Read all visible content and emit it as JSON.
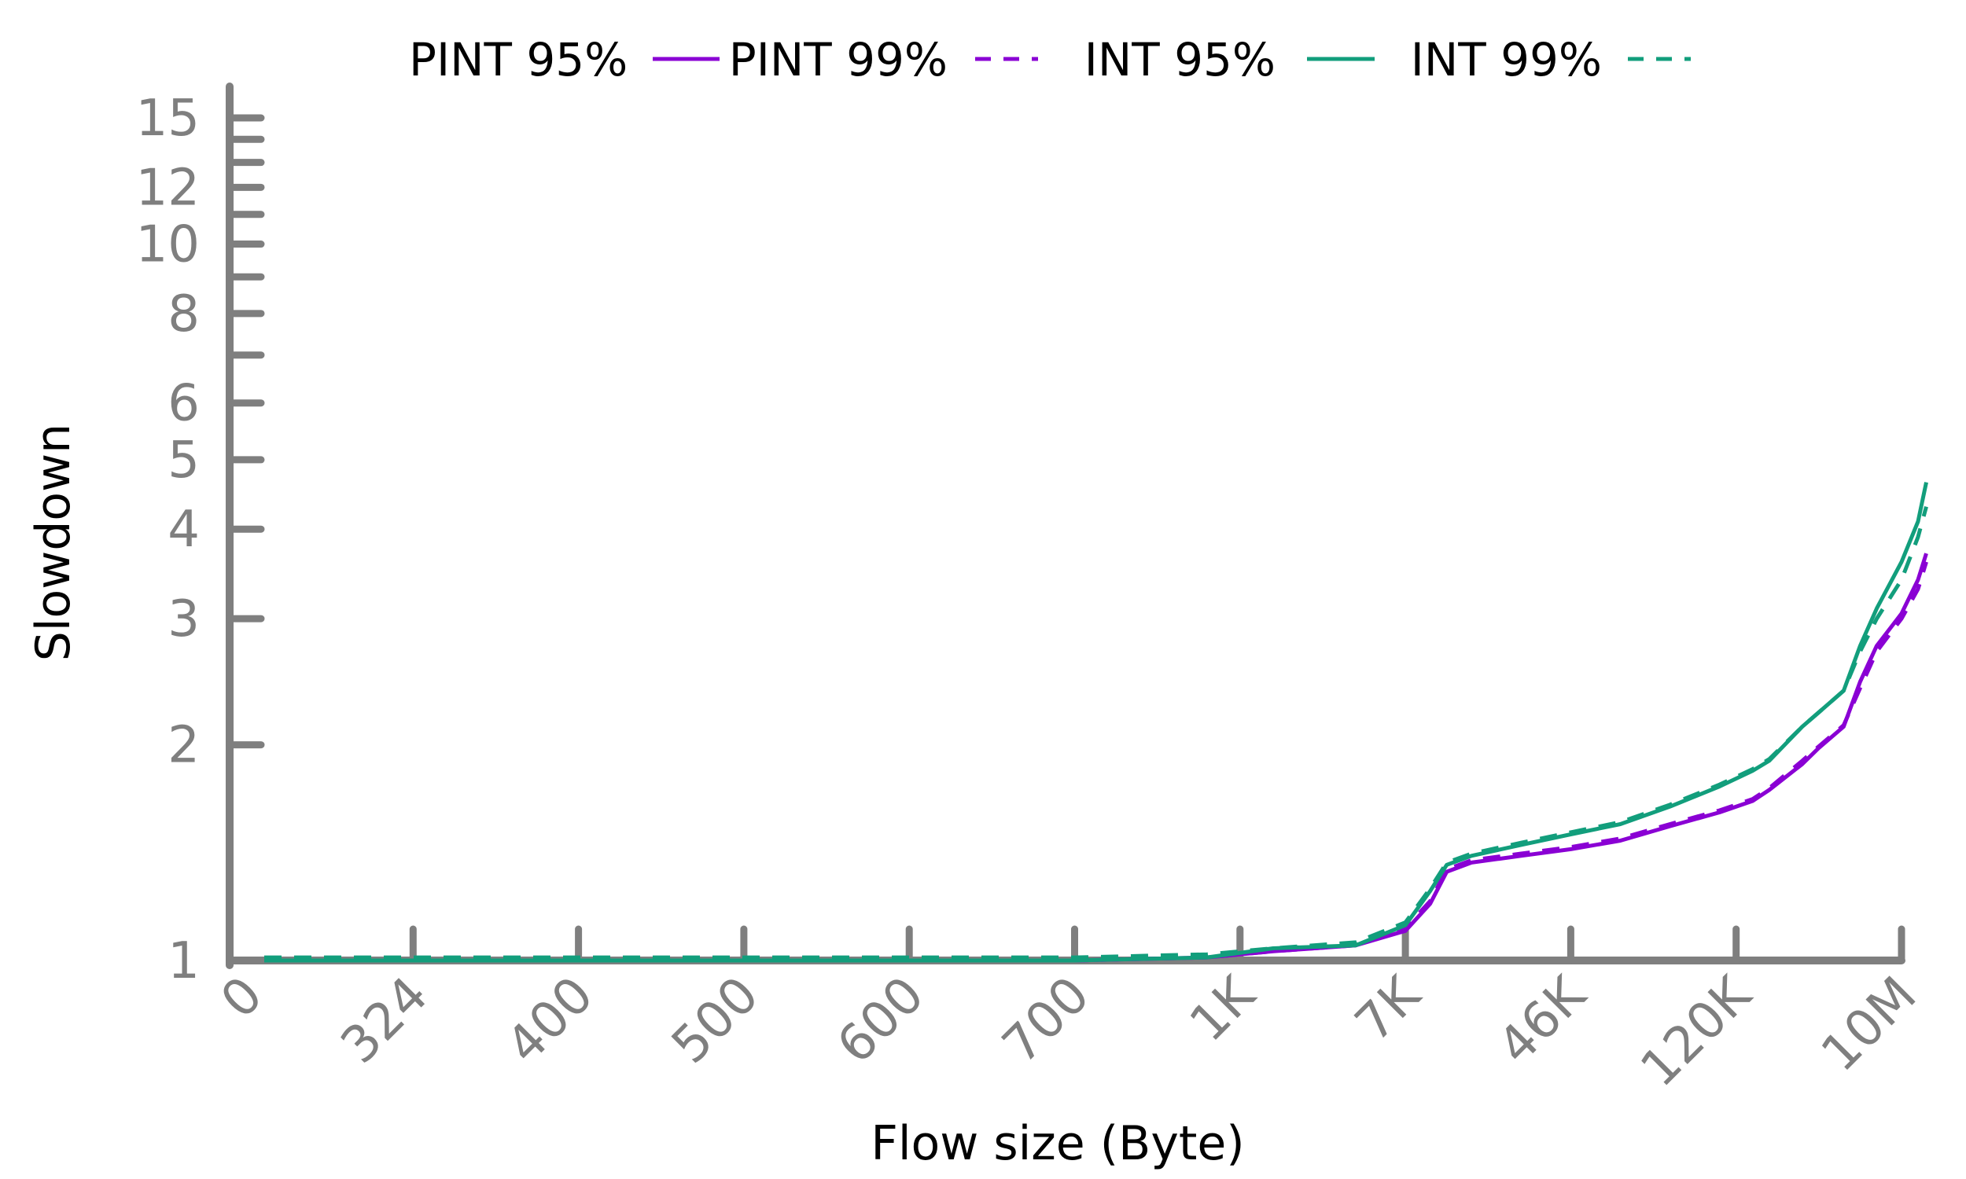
{
  "chart_data": {
    "type": "line",
    "xlabel": "Flow size (Byte)",
    "ylabel": "Slowdown",
    "x_categories": [
      "0",
      "324",
      "400",
      "500",
      "600",
      "700",
      "1K",
      "7K",
      "46K",
      "120K",
      "10M"
    ],
    "y_scale": "log",
    "y_ticks": [
      1,
      2,
      3,
      4,
      5,
      6,
      7,
      8,
      9,
      10,
      11,
      12,
      13,
      14,
      15
    ],
    "y_tick_labels": [
      {
        "value": 1,
        "label": "1"
      },
      {
        "value": 2,
        "label": "2"
      },
      {
        "value": 3,
        "label": "3"
      },
      {
        "value": 4,
        "label": "4"
      },
      {
        "value": 5,
        "label": "5"
      },
      {
        "value": 6,
        "label": "6"
      },
      {
        "value": 8,
        "label": "8"
      },
      {
        "value": 10,
        "label": "10"
      },
      {
        "value": 12,
        "label": "12"
      },
      {
        "value": 15,
        "label": "15"
      }
    ],
    "ylim": [
      1,
      17
    ],
    "grid": false,
    "legend_position": "top",
    "series": [
      {
        "name": "PINT 95%",
        "color": "#8a00d4",
        "dash": "solid",
        "points": [
          [
            0.1,
            1.0
          ],
          [
            1,
            1.0
          ],
          [
            2,
            1.0
          ],
          [
            3,
            1.0
          ],
          [
            4,
            1.0
          ],
          [
            5,
            1.0
          ],
          [
            5.8,
            1.01
          ],
          [
            6.2,
            1.03
          ],
          [
            6.7,
            1.05
          ],
          [
            7.0,
            1.1
          ],
          [
            7.15,
            1.2
          ],
          [
            7.25,
            1.33
          ],
          [
            7.4,
            1.37
          ],
          [
            7.7,
            1.4
          ],
          [
            8.0,
            1.43
          ],
          [
            8.3,
            1.47
          ],
          [
            8.6,
            1.54
          ],
          [
            8.9,
            1.61
          ],
          [
            9.1,
            1.67
          ],
          [
            9.2,
            1.73
          ],
          [
            9.4,
            1.88
          ],
          [
            9.5,
            1.98
          ],
          [
            9.65,
            2.12
          ],
          [
            9.75,
            2.45
          ],
          [
            9.85,
            2.75
          ],
          [
            10.0,
            3.05
          ],
          [
            10.1,
            3.4
          ],
          [
            10.15,
            3.7
          ]
        ]
      },
      {
        "name": "PINT 99%",
        "color": "#8a00d4",
        "dash": "dashed",
        "points": [
          [
            0.1,
            1.0
          ],
          [
            1,
            1.0
          ],
          [
            2,
            1.0
          ],
          [
            3,
            1.0
          ],
          [
            4,
            1.0
          ],
          [
            5,
            1.0
          ],
          [
            5.8,
            1.01
          ],
          [
            6.2,
            1.03
          ],
          [
            6.7,
            1.05
          ],
          [
            7.0,
            1.11
          ],
          [
            7.15,
            1.21
          ],
          [
            7.25,
            1.34
          ],
          [
            7.4,
            1.38
          ],
          [
            7.7,
            1.41
          ],
          [
            8.0,
            1.44
          ],
          [
            8.3,
            1.48
          ],
          [
            8.6,
            1.55
          ],
          [
            8.9,
            1.62
          ],
          [
            9.1,
            1.68
          ],
          [
            9.2,
            1.74
          ],
          [
            9.4,
            1.9
          ],
          [
            9.5,
            1.99
          ],
          [
            9.65,
            2.13
          ],
          [
            9.75,
            2.4
          ],
          [
            9.85,
            2.7
          ],
          [
            10.0,
            3.0
          ],
          [
            10.1,
            3.3
          ],
          [
            10.15,
            3.6
          ]
        ]
      },
      {
        "name": "INT 95%",
        "color": "#129e7c",
        "dash": "solid",
        "points": [
          [
            0.1,
            1.0
          ],
          [
            1,
            1.0
          ],
          [
            2,
            1.0
          ],
          [
            3,
            1.0
          ],
          [
            4,
            1.0
          ],
          [
            5,
            1.0
          ],
          [
            5.8,
            1.01
          ],
          [
            6.2,
            1.04
          ],
          [
            6.7,
            1.05
          ],
          [
            7.0,
            1.12
          ],
          [
            7.15,
            1.25
          ],
          [
            7.25,
            1.36
          ],
          [
            7.4,
            1.4
          ],
          [
            7.7,
            1.45
          ],
          [
            8.0,
            1.5
          ],
          [
            8.3,
            1.55
          ],
          [
            8.6,
            1.64
          ],
          [
            8.9,
            1.75
          ],
          [
            9.1,
            1.84
          ],
          [
            9.2,
            1.9
          ],
          [
            9.4,
            2.12
          ],
          [
            9.5,
            2.22
          ],
          [
            9.65,
            2.38
          ],
          [
            9.75,
            2.75
          ],
          [
            9.85,
            3.1
          ],
          [
            10.0,
            3.6
          ],
          [
            10.1,
            4.1
          ],
          [
            10.15,
            4.65
          ]
        ]
      },
      {
        "name": "INT 99%",
        "color": "#129e7c",
        "dash": "dashed",
        "points": [
          [
            0.1,
            1.01
          ],
          [
            1,
            1.01
          ],
          [
            2,
            1.01
          ],
          [
            3,
            1.01
          ],
          [
            4,
            1.01
          ],
          [
            5,
            1.01
          ],
          [
            5.8,
            1.02
          ],
          [
            6.2,
            1.04
          ],
          [
            6.7,
            1.06
          ],
          [
            7.0,
            1.13
          ],
          [
            7.15,
            1.26
          ],
          [
            7.25,
            1.37
          ],
          [
            7.4,
            1.41
          ],
          [
            7.7,
            1.46
          ],
          [
            8.0,
            1.51
          ],
          [
            8.3,
            1.56
          ],
          [
            8.6,
            1.65
          ],
          [
            8.9,
            1.76
          ],
          [
            9.1,
            1.85
          ],
          [
            9.2,
            1.91
          ],
          [
            9.4,
            2.12
          ],
          [
            9.5,
            2.22
          ],
          [
            9.65,
            2.38
          ],
          [
            9.75,
            2.7
          ],
          [
            9.85,
            3.0
          ],
          [
            10.0,
            3.4
          ],
          [
            10.1,
            3.9
          ],
          [
            10.15,
            4.3
          ]
        ]
      }
    ]
  }
}
